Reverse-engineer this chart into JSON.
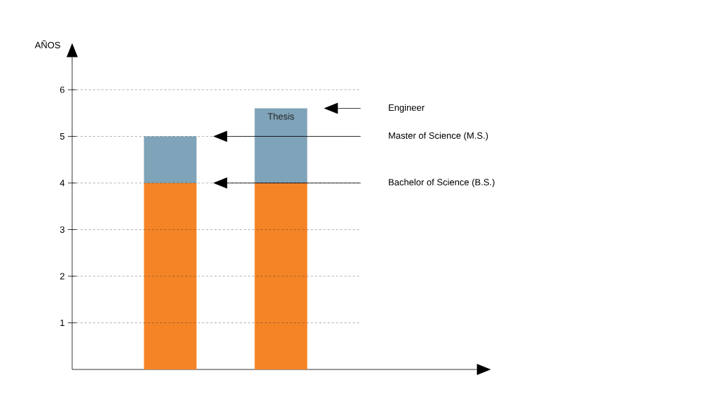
{
  "chart_data": {
    "type": "bar",
    "stacked": true,
    "ylabel": "AÑOS",
    "categories": [
      null,
      null
    ],
    "series": [
      {
        "color": "#f58426",
        "values": [
          4,
          4
        ]
      },
      {
        "color": "#7fa3b8",
        "values": [
          1,
          1.6
        ]
      }
    ],
    "ylim": [
      0,
      6.7
    ],
    "yticks": [
      1,
      2,
      3,
      4,
      5,
      6
    ],
    "grid": "y",
    "tick_labels": "y",
    "annotations": [
      "Thesis",
      "Engineer",
      "Master of Science (M.S.)",
      "Bachelor of Science (B.S.)"
    ]
  }
}
